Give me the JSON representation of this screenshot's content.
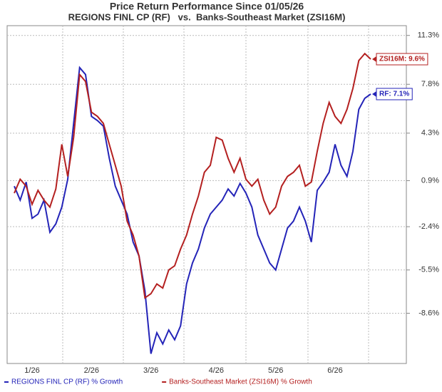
{
  "chart_data": {
    "type": "line",
    "title": "Price Return Performance Since 01/05/26",
    "subtitle": "REGIONS FINL CP (RF)   vs.  Banks-Southeast Market (ZSI16M)",
    "categories": [
      null,
      null,
      null,
      "1/26",
      null,
      null,
      null,
      null,
      null,
      null,
      null,
      null,
      null,
      "2/26",
      null,
      null,
      null,
      null,
      null,
      null,
      null,
      null,
      null,
      "3/26",
      null,
      null,
      null,
      null,
      null,
      null,
      null,
      null,
      null,
      null,
      "4/26",
      null,
      null,
      null,
      null,
      null,
      null,
      null,
      null,
      null,
      "5/26",
      null,
      null,
      null,
      null,
      null,
      null,
      null,
      null,
      null,
      "6/26",
      null,
      null,
      null,
      null,
      null,
      null
    ],
    "series": [
      {
        "name": "REGIONS FINL CP (RF) % Growth",
        "color": "#2424b8",
        "values": [
          0.5,
          -0.5,
          0.8,
          -1.8,
          -1.5,
          -0.5,
          -2.8,
          -2.2,
          -1.0,
          1.0,
          5.0,
          9.0,
          8.5,
          5.5,
          5.2,
          4.8,
          2.5,
          0.5,
          -0.5,
          -1.5,
          -3.5,
          -4.5,
          -7.0,
          -11.5,
          -10.0,
          -10.8,
          -9.8,
          -10.5,
          -9.5,
          -6.5,
          -5.0,
          -4.0,
          -2.5,
          -1.5,
          -1.0,
          -0.5,
          0.3,
          -0.2,
          0.7,
          0.0,
          -1.0,
          -3.0,
          -4.0,
          -5.0,
          -5.5,
          -4.0,
          -2.5,
          -2.0,
          -1.0,
          -2.0,
          -3.5,
          0.2,
          0.8,
          1.5,
          3.5,
          2.0,
          1.2,
          3.0,
          6.0,
          6.8,
          7.1
        ]
      },
      {
        "name": "Banks-Southeast Market (ZSI16M) % Growth",
        "color": "#b42020",
        "values": [
          0.0,
          1.0,
          0.5,
          -0.8,
          0.2,
          -0.5,
          -1.0,
          0.3,
          3.5,
          1.2,
          4.0,
          8.5,
          8.0,
          5.8,
          5.5,
          5.0,
          3.5,
          2.0,
          0.5,
          -2.0,
          -3.0,
          -4.5,
          -7.5,
          -7.2,
          -6.5,
          -6.8,
          -5.5,
          -5.2,
          -4.0,
          -3.0,
          -1.5,
          -0.2,
          1.5,
          2.0,
          4.0,
          3.8,
          2.5,
          1.5,
          2.5,
          1.0,
          0.5,
          1.0,
          -0.5,
          -1.5,
          -1.0,
          0.5,
          1.2,
          1.5,
          2.0,
          0.5,
          0.8,
          3.0,
          5.0,
          6.5,
          5.5,
          5.0,
          6.0,
          7.5,
          9.5,
          10.0,
          9.6
        ]
      }
    ],
    "annotations": [
      "RF: 7.1%",
      "ZSI16M: 9.6%"
    ],
    "ylim": [
      -12.2,
      12.0
    ],
    "yticks": [
      {
        "value": 11.3,
        "label": "11.3%"
      },
      {
        "value": 7.8,
        "label": "7.8%"
      },
      {
        "value": 4.3,
        "label": "4.3%"
      },
      {
        "value": 0.9,
        "label": "0.9%"
      },
      {
        "value": -2.4,
        "label": "-2.4%"
      },
      {
        "value": -5.5,
        "label": "-5.5%"
      },
      {
        "value": -8.6,
        "label": "-8.6%"
      }
    ],
    "grid": true
  }
}
